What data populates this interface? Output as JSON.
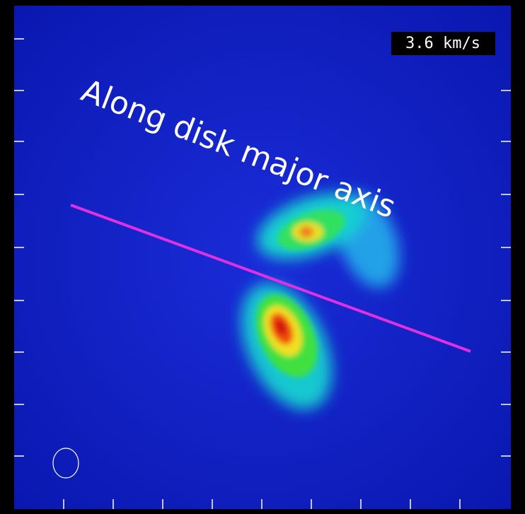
{
  "velocity_label": "3.6 km/s",
  "annotation": "Along disk major axis"
}
